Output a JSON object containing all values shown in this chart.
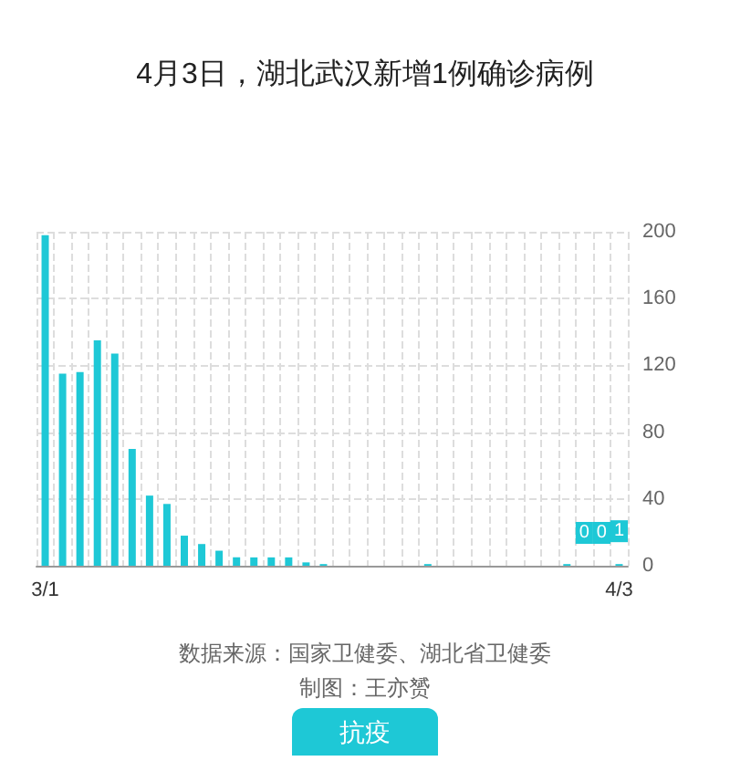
{
  "chart_data": {
    "type": "bar",
    "title": "4月3日，湖北武汉新增1例确诊病例",
    "categories": [
      "3/1",
      null,
      null,
      null,
      null,
      null,
      null,
      null,
      null,
      null,
      null,
      null,
      null,
      null,
      null,
      null,
      null,
      null,
      null,
      null,
      null,
      null,
      null,
      null,
      null,
      null,
      null,
      null,
      null,
      null,
      null,
      null,
      null,
      "4/3"
    ],
    "values": [
      198,
      115,
      116,
      135,
      127,
      70,
      42,
      37,
      18,
      13,
      9,
      5,
      5,
      5,
      5,
      2,
      1,
      0,
      0,
      0,
      0,
      0,
      1,
      0,
      0,
      0,
      0,
      0,
      0,
      0,
      1,
      0,
      0,
      1
    ],
    "value_labels": [
      null,
      null,
      null,
      null,
      null,
      null,
      null,
      null,
      null,
      null,
      null,
      null,
      null,
      null,
      null,
      null,
      null,
      null,
      null,
      null,
      null,
      null,
      null,
      null,
      null,
      null,
      null,
      null,
      null,
      null,
      null,
      "0",
      "0",
      "1"
    ],
    "color": "#1ec8d6",
    "ylim": [
      0,
      200
    ],
    "yticks": [
      0,
      40,
      80,
      120,
      160,
      200
    ],
    "grid": true,
    "annotations": [
      "数据来源：国家卫健委、湖北省卫健委",
      "制图：王亦赟",
      "抗疫"
    ]
  }
}
